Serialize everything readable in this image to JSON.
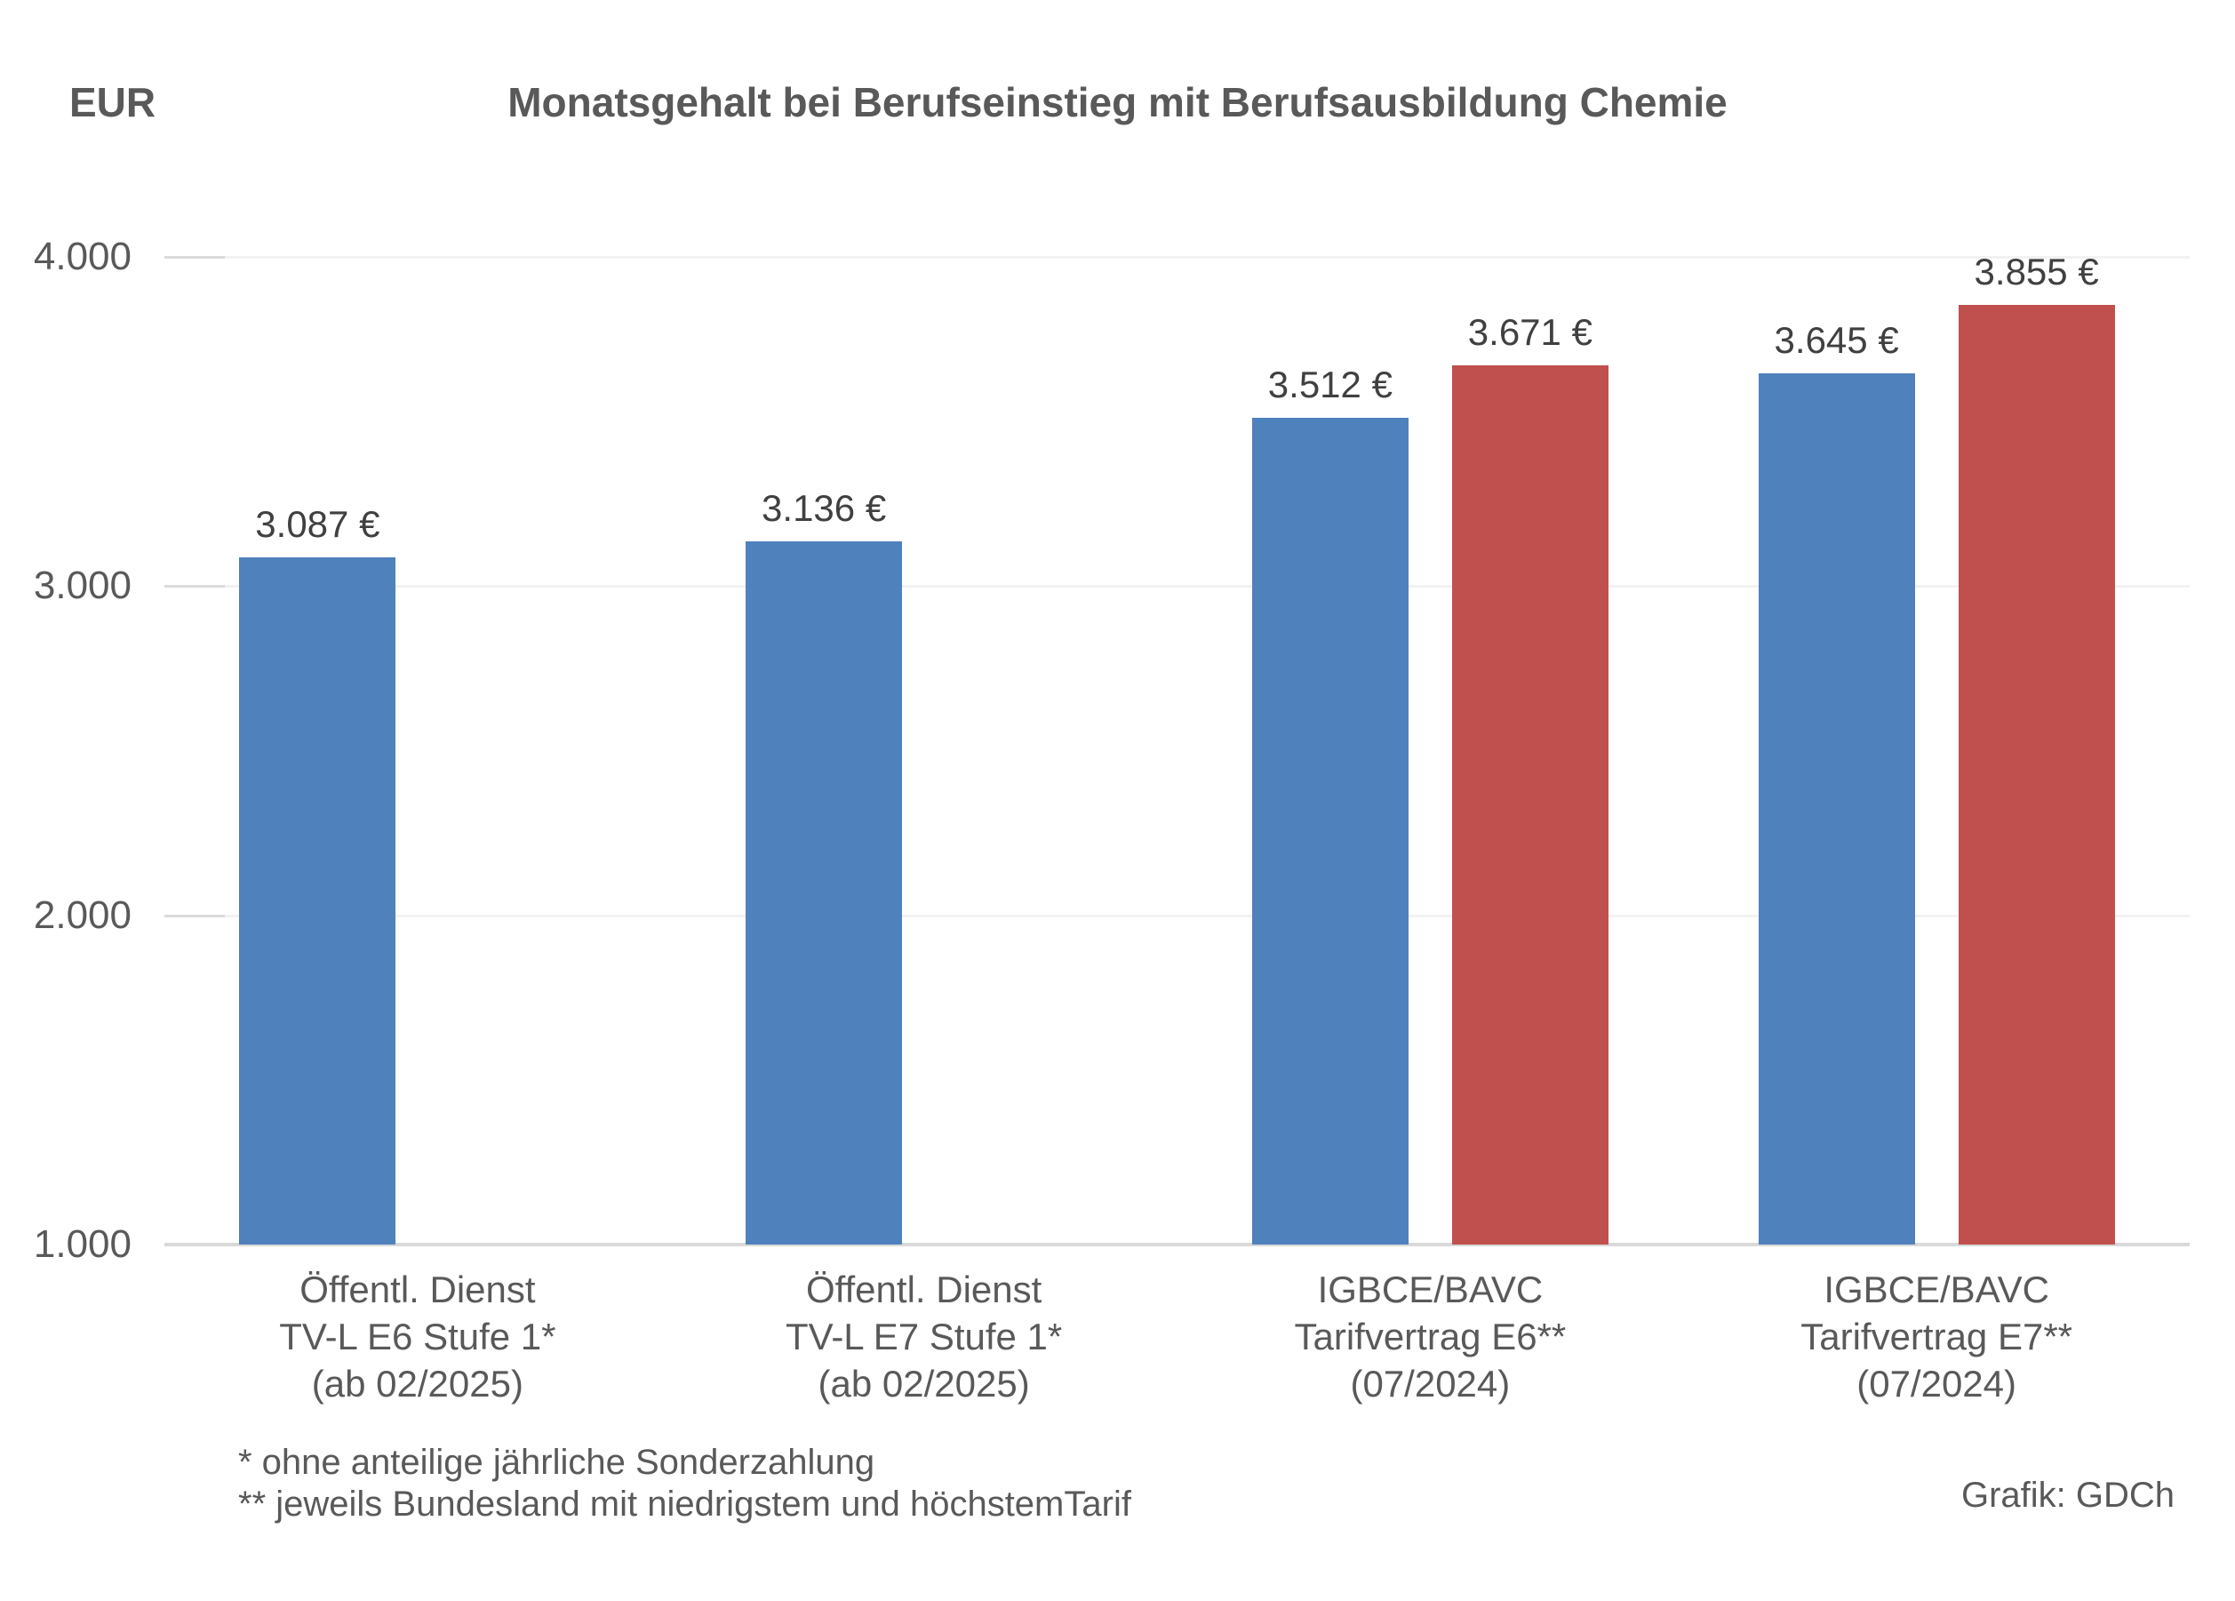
{
  "header": {
    "unit_label": "EUR",
    "title": "Monatsgehalt bei Berufseinstieg mit Berufsausbildung Chemie"
  },
  "footnotes": {
    "line1": "* ohne anteilige jährliche Sonderzahlung",
    "line2": "** jeweils Bundesland mit niedrigstem und höchstemTarif"
  },
  "credit": "Grafik: GDCh",
  "colors": {
    "blue": "#4F81BD",
    "red": "#C0504D",
    "axis_line": "#D9D9D9",
    "gridline": "#F2F2F2",
    "tick_stub": "#DBDBDB",
    "text": "#595959",
    "value_label_text": "#404040"
  },
  "chart_data": {
    "type": "bar",
    "title": "Monatsgehalt bei Berufseinstieg mit Berufsausbildung Chemie",
    "unit": "EUR",
    "xlabel": "",
    "ylabel": "EUR",
    "ylim": [
      1000,
      4000
    ],
    "grid": true,
    "legend": false,
    "axis_ticks": [
      {
        "value": 1000,
        "label": "1.000"
      },
      {
        "value": 2000,
        "label": "2.000"
      },
      {
        "value": 3000,
        "label": "3.000"
      },
      {
        "value": 4000,
        "label": "4.000"
      }
    ],
    "categories": [
      {
        "lines": [
          "Öffentl. Dienst",
          "TV-L E6 Stufe 1*",
          "(ab 02/2025)"
        ]
      },
      {
        "lines": [
          "Öffentl. Dienst",
          "TV-L E7 Stufe 1*",
          "(ab 02/2025)"
        ]
      },
      {
        "lines": [
          "IGBCE/BAVC",
          "Tarifvertrag E6**",
          "(07/2024)"
        ]
      },
      {
        "lines": [
          "IGBCE/BAVC",
          "Tarifvertrag E7**",
          "(07/2024)"
        ]
      }
    ],
    "series": [
      {
        "name": "blue",
        "color_key": "blue",
        "values": [
          3087,
          3136,
          3512,
          3645
        ],
        "labels": [
          "3.087 €",
          "3.136 €",
          "3.512 €",
          "3.645 €"
        ]
      },
      {
        "name": "red",
        "color_key": "red",
        "values": [
          null,
          null,
          3671,
          3855
        ],
        "labels": [
          null,
          null,
          "3.671 €",
          "3.855 €"
        ]
      }
    ]
  }
}
